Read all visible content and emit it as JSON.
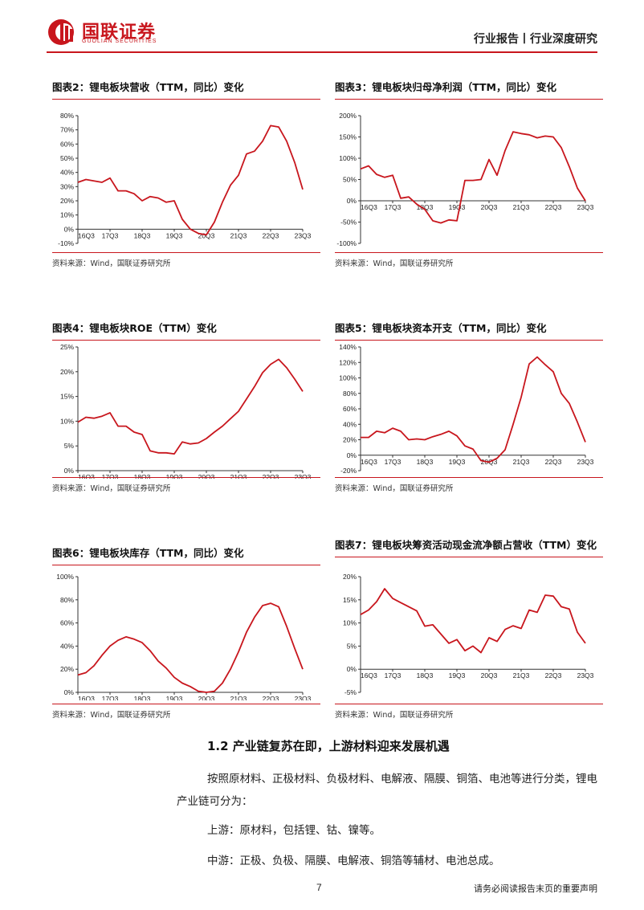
{
  "header": {
    "logo_cn": "国联证券",
    "logo_en": "GUOLIAN SECURITIES",
    "right_text": "行业报告丨行业深度研究",
    "brand_color": "#c8161d"
  },
  "source_text": "资料来源：Wind，国联证券研究所",
  "charts": [
    {
      "id": "c2",
      "title": "图表2：锂电板块营收（TTM，同比）变化",
      "chart_data": {
        "type": "line",
        "title": "图表2：锂电板块营收（TTM，同比）变化",
        "x_ticks": [
          "16Q3",
          "17Q3",
          "18Q3",
          "19Q3",
          "20Q3",
          "21Q3",
          "22Q3",
          "23Q3"
        ],
        "y_ticks": [
          "80%",
          "70%",
          "60%",
          "50%",
          "40%",
          "30%",
          "20%",
          "10%",
          "0%",
          "-10%"
        ],
        "ylim": [
          -10,
          80
        ],
        "values": [
          33,
          35,
          34,
          33,
          36,
          27,
          27,
          25,
          20,
          23,
          22,
          19,
          20,
          7,
          0,
          -3,
          -4,
          5,
          19,
          31,
          38,
          53,
          55,
          62,
          73,
          72,
          62,
          47,
          28
        ]
      }
    },
    {
      "id": "c3",
      "title": "图表3：锂电板块归母净利润（TTM，同比）变化",
      "chart_data": {
        "type": "line",
        "title": "图表3：锂电板块归母净利润（TTM，同比）变化",
        "x_ticks": [
          "16Q3",
          "17Q3",
          "18Q3",
          "19Q3",
          "20Q3",
          "21Q3",
          "22Q3",
          "23Q3"
        ],
        "y_ticks": [
          "200%",
          "150%",
          "100%",
          "50%",
          "0%",
          "-50%",
          "-100%"
        ],
        "ylim": [
          -100,
          200
        ],
        "values": [
          75,
          82,
          62,
          55,
          60,
          6,
          9,
          -8,
          -20,
          -47,
          -52,
          -45,
          -47,
          48,
          48,
          50,
          97,
          60,
          118,
          162,
          158,
          155,
          148,
          152,
          150,
          125,
          80,
          30,
          0
        ]
      }
    },
    {
      "id": "c4",
      "title": "图表4：锂电板块ROE（TTM）变化",
      "chart_data": {
        "type": "line",
        "title": "图表4：锂电板块ROE（TTM）变化",
        "x_ticks": [
          "16Q3",
          "17Q3",
          "18Q3",
          "19Q3",
          "20Q3",
          "21Q3",
          "22Q3",
          "23Q3"
        ],
        "y_ticks": [
          "25%",
          "20%",
          "15%",
          "10%",
          "5%",
          "0%"
        ],
        "ylim": [
          0,
          25
        ],
        "values": [
          9.8,
          10.8,
          10.6,
          11,
          11.7,
          9,
          9,
          7.8,
          7.3,
          4,
          3.6,
          3.6,
          3.4,
          5.8,
          5.4,
          5.6,
          6.5,
          7.8,
          9,
          10.5,
          12,
          14.5,
          17,
          19.8,
          21.5,
          22.5,
          20.8,
          18.5,
          16
        ]
      }
    },
    {
      "id": "c5",
      "title": "图表5：锂电板块资本开支（TTM，同比）变化",
      "chart_data": {
        "type": "line",
        "title": "图表5：锂电板块资本开支（TTM，同比）变化",
        "x_ticks": [
          "16Q3",
          "17Q3",
          "18Q3",
          "19Q3",
          "20Q3",
          "21Q3",
          "22Q3",
          "23Q3"
        ],
        "y_ticks": [
          "140%",
          "120%",
          "100%",
          "80%",
          "60%",
          "40%",
          "20%",
          "0%",
          "-20%"
        ],
        "ylim": [
          -20,
          140
        ],
        "values": [
          23,
          23,
          31,
          29,
          35,
          31,
          20,
          21,
          20,
          24,
          27,
          31,
          25,
          12,
          8,
          -7,
          -9,
          -4,
          7,
          40,
          75,
          118,
          127,
          117,
          108,
          80,
          67,
          43,
          17
        ]
      }
    },
    {
      "id": "c6",
      "title": "图表6：锂电板块库存（TTM，同比）变化",
      "chart_data": {
        "type": "line",
        "title": "图表6：锂电板块库存（TTM，同比）变化",
        "x_ticks": [
          "16Q3",
          "17Q3",
          "18Q3",
          "19Q3",
          "20Q3",
          "21Q3",
          "22Q3",
          "23Q3"
        ],
        "y_ticks": [
          "100%",
          "80%",
          "60%",
          "40%",
          "20%",
          "0%"
        ],
        "ylim": [
          0,
          100
        ],
        "values": [
          15,
          17,
          23,
          32,
          40,
          45,
          48,
          46,
          43,
          36,
          27,
          21,
          13,
          8,
          5,
          1,
          0,
          1,
          8,
          20,
          35,
          52,
          65,
          75,
          77,
          74,
          57,
          38,
          20
        ]
      }
    },
    {
      "id": "c7",
      "title": "图表7：锂电板块筹资活动现金流净额占营收（TTM）变化",
      "chart_data": {
        "type": "line",
        "title": "图表7：锂电板块筹资活动现金流净额占营收（TTM）变化",
        "x_ticks": [
          "16Q3",
          "17Q3",
          "18Q3",
          "19Q3",
          "20Q3",
          "21Q3",
          "22Q3",
          "23Q3"
        ],
        "y_ticks": [
          "20%",
          "15%",
          "10%",
          "5%",
          "0%",
          "-5%"
        ],
        "ylim": [
          -5,
          20
        ],
        "values": [
          11.8,
          12.8,
          14.6,
          17.4,
          15.3,
          14.4,
          13.5,
          12.6,
          9.3,
          9.6,
          7.6,
          5.6,
          6.4,
          4,
          5,
          3.6,
          6.8,
          6,
          8.6,
          9.4,
          8.8,
          12.8,
          12.3,
          16,
          15.8,
          13.5,
          13,
          8,
          5.6
        ]
      }
    }
  ],
  "section": {
    "title": "1.2 产业链复苏在即，上游材料迎来发展机遇",
    "para1": "按照原材料、正极材料、负极材料、电解液、隔膜、铜箔、电池等进行分类，锂电产业链可分为：",
    "para2": "上游：原材料，包括锂、钴、镍等。",
    "para3": "中游：正极、负极、隔膜、电解液、铜箔等辅材、电池总成。"
  },
  "footer": {
    "page": "7",
    "note": "请务必阅读报告末页的重要声明"
  }
}
